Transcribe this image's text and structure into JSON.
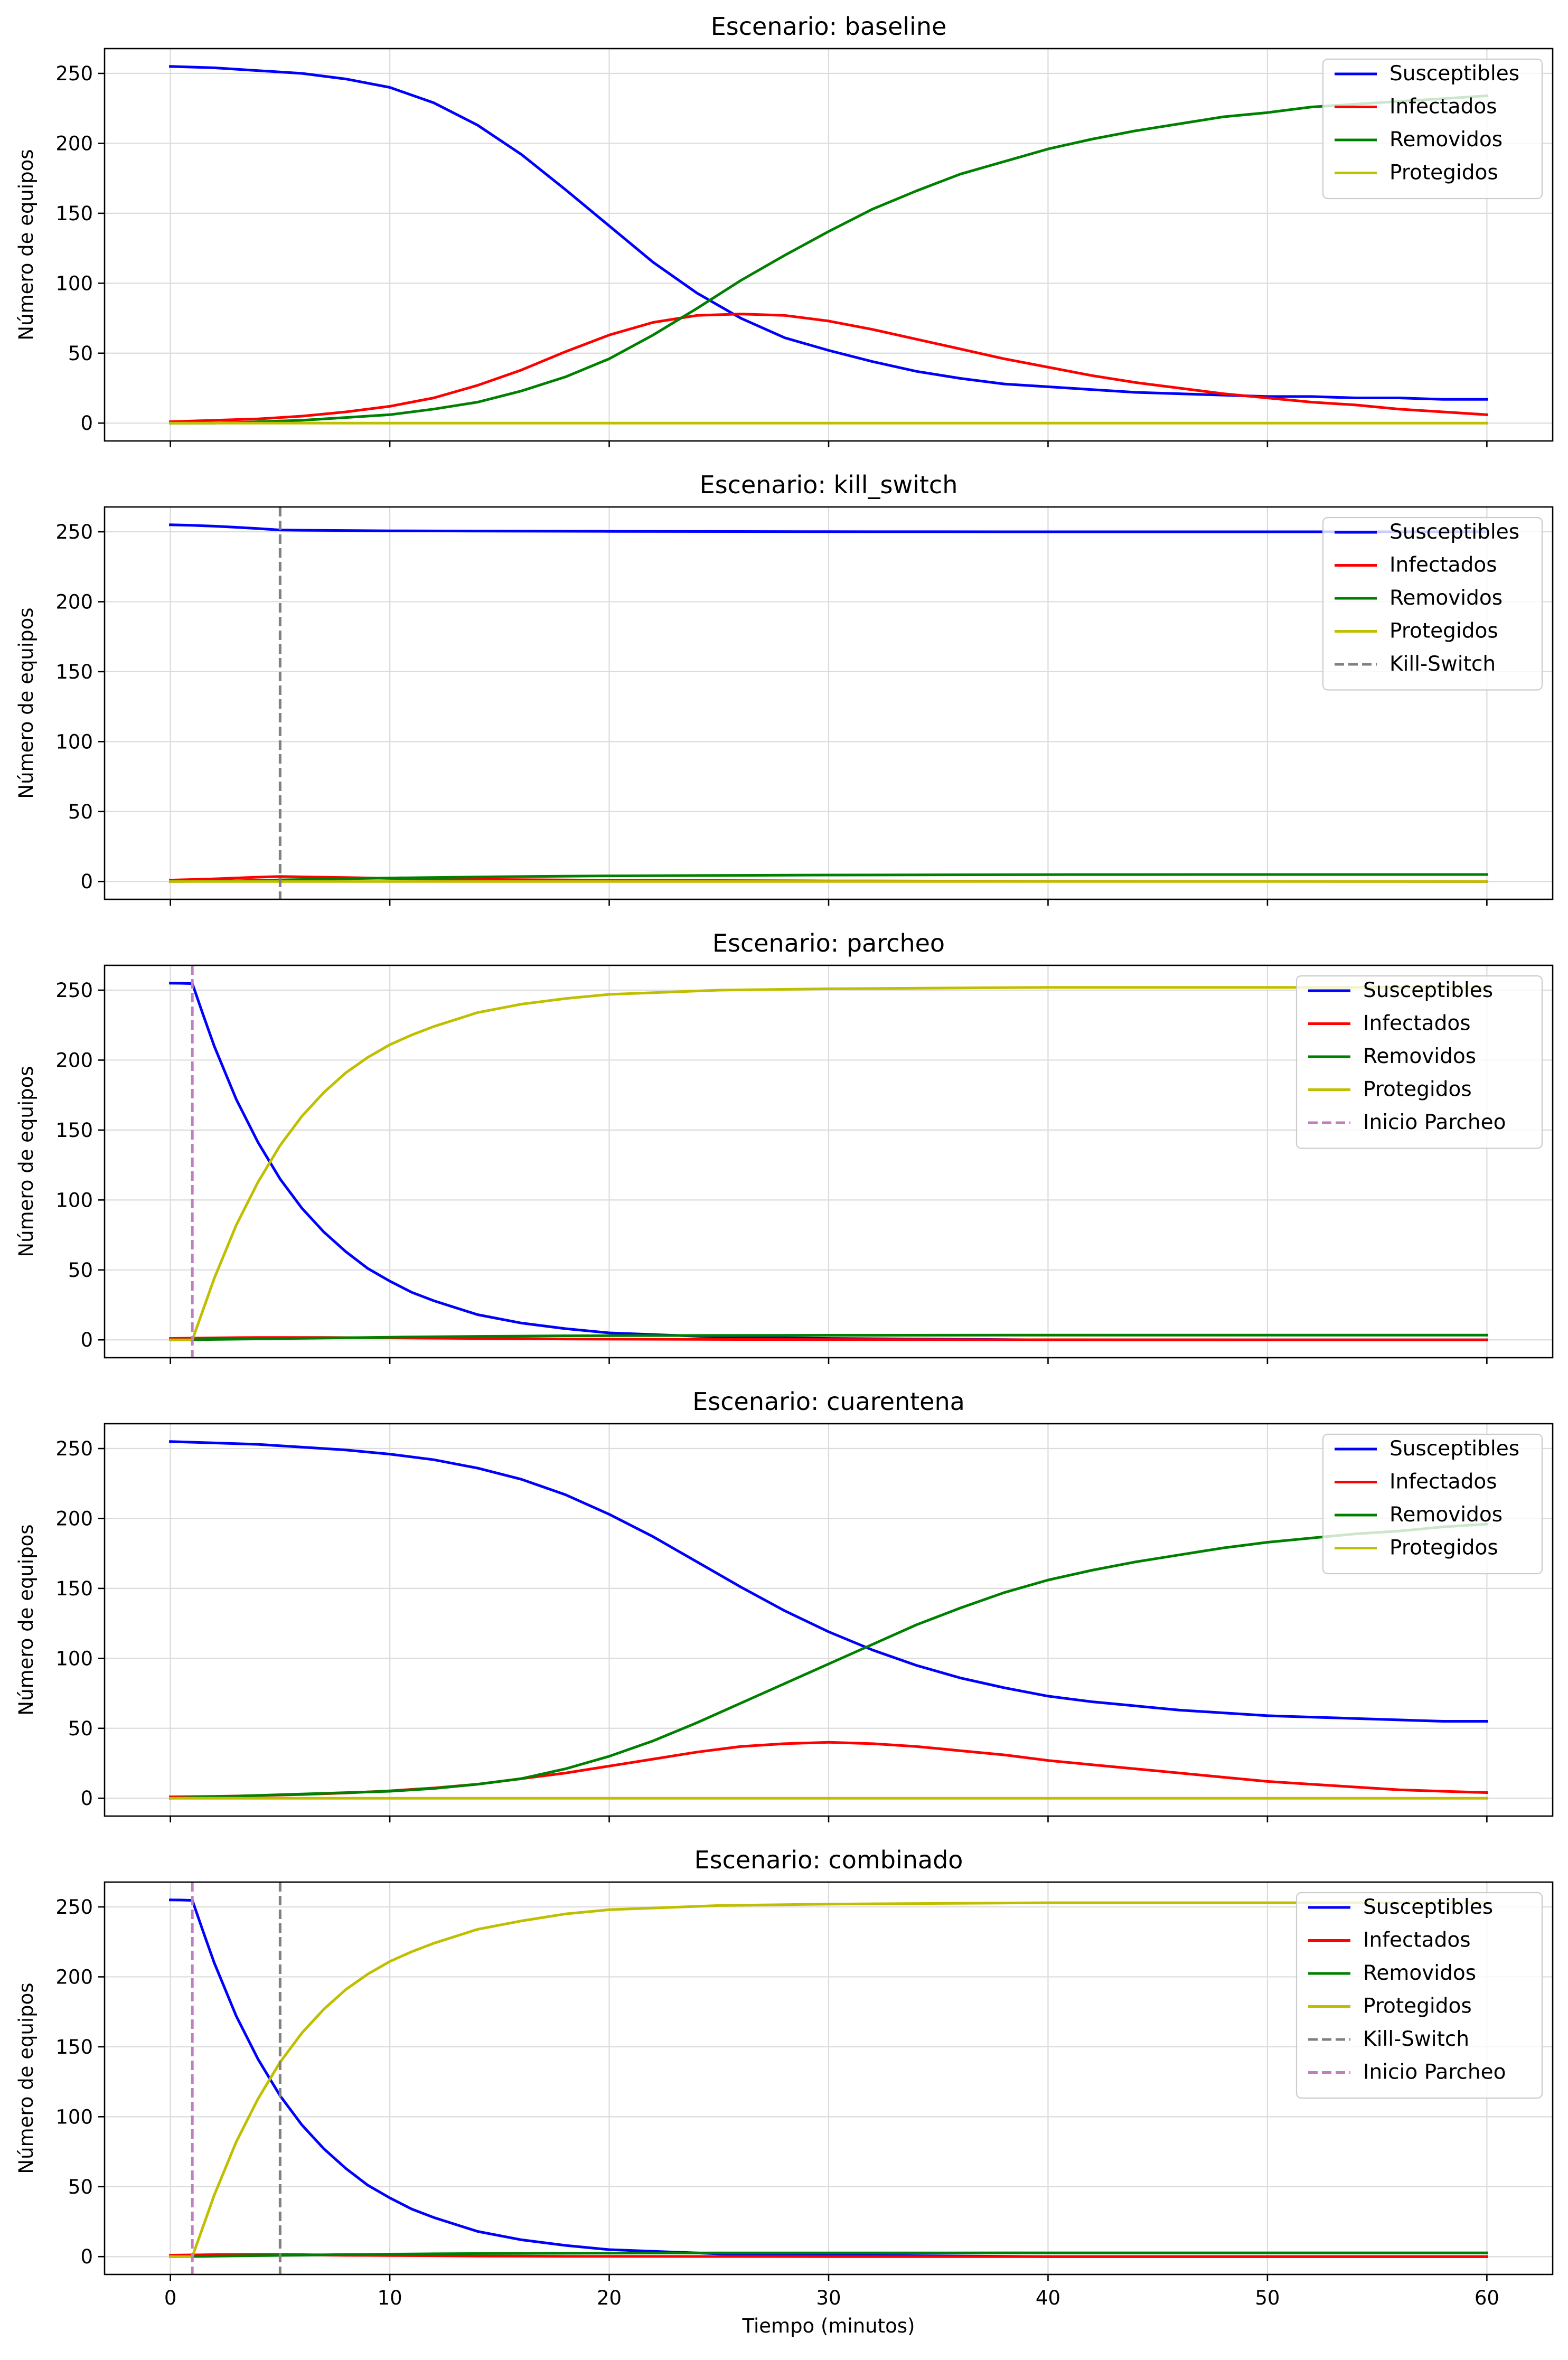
{
  "colors": {
    "susceptibles": "#0000ff",
    "infectados": "#ff0000",
    "removidos": "#008000",
    "protegidos": "#bfbf00",
    "kill_switch": "#808080",
    "inicio_parcheo": "#bf7fbf"
  },
  "chart_data": [
    {
      "type": "line",
      "title": "Escenario: baseline",
      "xlabel": "",
      "ylabel": "Número de equipos",
      "xlim": [
        -3,
        63
      ],
      "ylim": [
        -12.75,
        267.75
      ],
      "xticks": [
        0,
        10,
        20,
        30,
        40,
        50,
        60
      ],
      "yticks": [
        0,
        50,
        100,
        150,
        200,
        250
      ],
      "grid": true,
      "legend_position": "top-right",
      "x": [
        0,
        2,
        4,
        6,
        8,
        10,
        12,
        14,
        16,
        18,
        20,
        22,
        24,
        26,
        28,
        30,
        32,
        34,
        36,
        38,
        40,
        42,
        44,
        46,
        48,
        50,
        52,
        54,
        56,
        58,
        60
      ],
      "series": [
        {
          "name": "Susceptibles",
          "color_key": "susceptibles",
          "style": "solid",
          "values": [
            255,
            254,
            252,
            250,
            246,
            240,
            229,
            213,
            192,
            167,
            141,
            115,
            93,
            75,
            61,
            52,
            44,
            37,
            32,
            28,
            26,
            24,
            22,
            21,
            20,
            19,
            19,
            18,
            18,
            17,
            17
          ]
        },
        {
          "name": "Infectados",
          "color_key": "infectados",
          "style": "solid",
          "values": [
            1,
            2,
            3,
            5,
            8,
            12,
            18,
            27,
            38,
            51,
            63,
            72,
            77,
            78,
            77,
            73,
            67,
            60,
            53,
            46,
            40,
            34,
            29,
            25,
            21,
            18,
            15,
            13,
            10,
            8,
            6
          ]
        },
        {
          "name": "Removidos",
          "color_key": "removidos",
          "style": "solid",
          "values": [
            0,
            0,
            1,
            2,
            4,
            6,
            10,
            15,
            23,
            33,
            46,
            63,
            82,
            102,
            120,
            137,
            153,
            166,
            178,
            187,
            196,
            203,
            209,
            214,
            219,
            222,
            226,
            228,
            230,
            232,
            234
          ]
        },
        {
          "name": "Protegidos",
          "color_key": "protegidos",
          "style": "solid",
          "values": [
            0,
            0,
            0,
            0,
            0,
            0,
            0,
            0,
            0,
            0,
            0,
            0,
            0,
            0,
            0,
            0,
            0,
            0,
            0,
            0,
            0,
            0,
            0,
            0,
            0,
            0,
            0,
            0,
            0,
            0,
            0
          ]
        }
      ],
      "vlines": []
    },
    {
      "type": "line",
      "title": "Escenario: kill_switch",
      "xlabel": "",
      "ylabel": "Número de equipos",
      "xlim": [
        -3,
        63
      ],
      "ylim": [
        -12.75,
        267.75
      ],
      "xticks": [
        0,
        10,
        20,
        30,
        40,
        50,
        60
      ],
      "yticks": [
        0,
        50,
        100,
        150,
        200,
        250
      ],
      "grid": true,
      "legend_position": "top-right",
      "x": [
        0,
        1,
        2,
        3,
        4,
        5,
        6,
        8,
        10,
        15,
        20,
        30,
        40,
        50,
        60
      ],
      "series": [
        {
          "name": "Susceptibles",
          "color_key": "susceptibles",
          "style": "solid",
          "values": [
            255,
            254.6,
            254,
            253.2,
            252.3,
            251.3,
            251.1,
            250.9,
            250.7,
            250.5,
            250.3,
            250.1,
            250,
            250,
            250
          ]
        },
        {
          "name": "Infectados",
          "color_key": "infectados",
          "style": "solid",
          "values": [
            1,
            1.4,
            1.9,
            2.5,
            3.1,
            3.6,
            3.3,
            2.8,
            2.2,
            1.4,
            0.9,
            0.4,
            0.2,
            0.1,
            0
          ]
        },
        {
          "name": "Removidos",
          "color_key": "removidos",
          "style": "solid",
          "values": [
            0,
            0.1,
            0.3,
            0.5,
            0.8,
            1.1,
            1.4,
            2,
            2.5,
            3.4,
            4,
            4.6,
            4.9,
            5,
            5
          ]
        },
        {
          "name": "Protegidos",
          "color_key": "protegidos",
          "style": "solid",
          "values": [
            0,
            0,
            0,
            0,
            0,
            0,
            0,
            0,
            0,
            0,
            0,
            0,
            0,
            0,
            0
          ]
        }
      ],
      "vlines": [
        {
          "name": "Kill-Switch",
          "color_key": "kill_switch",
          "x": 5
        }
      ]
    },
    {
      "type": "line",
      "title": "Escenario: parcheo",
      "xlabel": "",
      "ylabel": "Número de equipos",
      "xlim": [
        -3,
        63
      ],
      "ylim": [
        -12.75,
        267.75
      ],
      "xticks": [
        0,
        10,
        20,
        30,
        40,
        50,
        60
      ],
      "yticks": [
        0,
        50,
        100,
        150,
        200,
        250
      ],
      "grid": true,
      "legend_position": "top-right",
      "x": [
        0,
        0.5,
        1,
        1.5,
        2,
        3,
        4,
        5,
        6,
        7,
        8,
        9,
        10,
        11,
        12,
        14,
        16,
        18,
        20,
        25,
        30,
        40,
        50,
        60
      ],
      "series": [
        {
          "name": "Susceptibles",
          "color_key": "susceptibles",
          "style": "solid",
          "values": [
            255,
            254.9,
            254.7,
            232,
            210,
            172,
            141,
            115,
            94,
            77,
            63,
            51,
            42,
            34,
            28,
            18,
            12,
            8,
            5,
            2,
            1,
            0,
            0,
            0
          ]
        },
        {
          "name": "Infectados",
          "color_key": "infectados",
          "style": "solid",
          "values": [
            1,
            1.1,
            1.2,
            1.3,
            1.4,
            1.6,
            1.7,
            1.7,
            1.7,
            1.7,
            1.6,
            1.5,
            1.4,
            1.3,
            1.2,
            1,
            0.8,
            0.6,
            0.5,
            0.3,
            0.2,
            0.1,
            0,
            0
          ]
        },
        {
          "name": "Removidos",
          "color_key": "removidos",
          "style": "solid",
          "values": [
            0,
            0,
            0.1,
            0.2,
            0.3,
            0.5,
            0.7,
            0.9,
            1.1,
            1.3,
            1.5,
            1.7,
            1.9,
            2.1,
            2.2,
            2.5,
            2.7,
            2.9,
            3,
            3.2,
            3.3,
            3.4,
            3.4,
            3.4
          ]
        },
        {
          "name": "Protegidos",
          "color_key": "protegidos",
          "style": "solid",
          "values": [
            0,
            0,
            0,
            22,
            44,
            82,
            113,
            139,
            160,
            177,
            191,
            202,
            211,
            218,
            224,
            234,
            240,
            244,
            247,
            250,
            251,
            252,
            252,
            252
          ]
        }
      ],
      "vlines": [
        {
          "name": "Inicio Parcheo",
          "color_key": "inicio_parcheo",
          "x": 1
        }
      ]
    },
    {
      "type": "line",
      "title": "Escenario: cuarentena",
      "xlabel": "",
      "ylabel": "Número de equipos",
      "xlim": [
        -3,
        63
      ],
      "ylim": [
        -12.75,
        267.75
      ],
      "xticks": [
        0,
        10,
        20,
        30,
        40,
        50,
        60
      ],
      "yticks": [
        0,
        50,
        100,
        150,
        200,
        250
      ],
      "grid": true,
      "legend_position": "top-right",
      "x": [
        0,
        2,
        4,
        6,
        8,
        10,
        12,
        14,
        16,
        18,
        20,
        22,
        24,
        26,
        28,
        30,
        32,
        34,
        36,
        38,
        40,
        42,
        44,
        46,
        48,
        50,
        52,
        54,
        56,
        58,
        60
      ],
      "series": [
        {
          "name": "Susceptibles",
          "color_key": "susceptibles",
          "style": "solid",
          "values": [
            255,
            254,
            253,
            251,
            249,
            246,
            242,
            236,
            228,
            217,
            203,
            187,
            169,
            151,
            134,
            119,
            106,
            95,
            86,
            79,
            73,
            69,
            66,
            63,
            61,
            59,
            58,
            57,
            56,
            55,
            55
          ]
        },
        {
          "name": "Infectados",
          "color_key": "infectados",
          "style": "solid",
          "values": [
            1,
            1.3,
            1.9,
            2.7,
            3.8,
            5.3,
            7.3,
            10,
            14,
            18,
            23,
            28,
            33,
            37,
            39,
            40,
            39,
            37,
            34,
            31,
            27,
            24,
            21,
            18,
            15,
            12,
            10,
            8,
            6,
            5,
            4
          ]
        },
        {
          "name": "Removidos",
          "color_key": "removidos",
          "style": "solid",
          "values": [
            0,
            1,
            2,
            3,
            4,
            5,
            7,
            10,
            14,
            21,
            30,
            41,
            54,
            68,
            82,
            96,
            110,
            124,
            136,
            147,
            156,
            163,
            169,
            174,
            179,
            183,
            186,
            189,
            191,
            194,
            196
          ]
        },
        {
          "name": "Protegidos",
          "color_key": "protegidos",
          "style": "solid",
          "values": [
            0,
            0,
            0,
            0,
            0,
            0,
            0,
            0,
            0,
            0,
            0,
            0,
            0,
            0,
            0,
            0,
            0,
            0,
            0,
            0,
            0,
            0,
            0,
            0,
            0,
            0,
            0,
            0,
            0,
            0,
            0
          ]
        }
      ],
      "vlines": []
    },
    {
      "type": "line",
      "title": "Escenario: combinado",
      "xlabel": "Tiempo (minutos)",
      "ylabel": "Número de equipos",
      "xlim": [
        -3,
        63
      ],
      "ylim": [
        -12.75,
        267.75
      ],
      "xticks": [
        0,
        10,
        20,
        30,
        40,
        50,
        60
      ],
      "yticks": [
        0,
        50,
        100,
        150,
        200,
        250
      ],
      "grid": true,
      "legend_position": "top-right",
      "x": [
        0,
        0.5,
        1,
        1.5,
        2,
        3,
        4,
        5,
        6,
        7,
        8,
        9,
        10,
        11,
        12,
        14,
        16,
        18,
        20,
        25,
        30,
        40,
        50,
        60
      ],
      "series": [
        {
          "name": "Susceptibles",
          "color_key": "susceptibles",
          "style": "solid",
          "values": [
            255,
            254.9,
            254.7,
            232,
            210,
            172,
            141,
            115,
            94,
            77,
            63,
            51,
            42,
            34,
            28,
            18,
            12,
            8,
            5,
            2,
            1,
            0,
            0,
            0
          ]
        },
        {
          "name": "Infectados",
          "color_key": "infectados",
          "style": "solid",
          "values": [
            1,
            1.1,
            1.2,
            1.3,
            1.4,
            1.5,
            1.6,
            1.6,
            1.4,
            1.2,
            1,
            0.9,
            0.8,
            0.7,
            0.6,
            0.4,
            0.3,
            0.2,
            0.2,
            0.1,
            0,
            0,
            0,
            0
          ]
        },
        {
          "name": "Removidos",
          "color_key": "removidos",
          "style": "solid",
          "values": [
            0,
            0,
            0.1,
            0.2,
            0.3,
            0.5,
            0.7,
            0.9,
            1.1,
            1.3,
            1.5,
            1.6,
            1.8,
            1.9,
            2,
            2.2,
            2.3,
            2.4,
            2.5,
            2.6,
            2.6,
            2.7,
            2.7,
            2.7
          ]
        },
        {
          "name": "Protegidos",
          "color_key": "protegidos",
          "style": "solid",
          "values": [
            0,
            0,
            0,
            22,
            44,
            82,
            113,
            139,
            160,
            177,
            191,
            202,
            211,
            218,
            224,
            234,
            240,
            245,
            248,
            251,
            252,
            253,
            253,
            253
          ]
        }
      ],
      "vlines": [
        {
          "name": "Kill-Switch",
          "color_key": "kill_switch",
          "x": 5
        },
        {
          "name": "Inicio Parcheo",
          "color_key": "inicio_parcheo",
          "x": 1
        }
      ]
    }
  ]
}
